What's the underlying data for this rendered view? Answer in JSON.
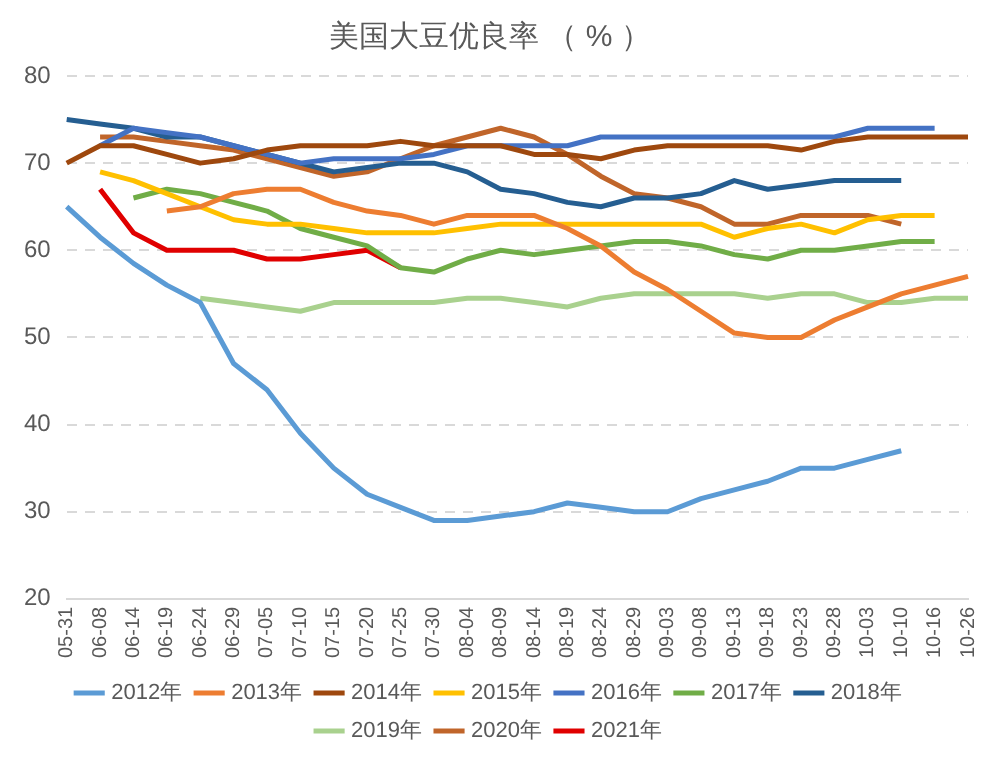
{
  "chart_data": {
    "type": "line",
    "title": "美国大豆优良率 （ % ）",
    "categories": [
      "05-31",
      "06-08",
      "06-14",
      "06-19",
      "06-24",
      "06-29",
      "07-05",
      "07-10",
      "07-15",
      "07-20",
      "07-25",
      "07-30",
      "08-04",
      "08-09",
      "08-14",
      "08-19",
      "08-24",
      "08-29",
      "09-03",
      "09-08",
      "09-13",
      "09-18",
      "09-23",
      "09-28",
      "10-03",
      "10-10",
      "10-16",
      "10-26"
    ],
    "series": [
      {
        "name": "2012年",
        "color": "#5b9bd5",
        "values": [
          65,
          61.5,
          58.5,
          56,
          54,
          47,
          44,
          39,
          35,
          32,
          30.5,
          29,
          29,
          29.5,
          30,
          31,
          30.5,
          30,
          30,
          31.5,
          32.5,
          33.5,
          35,
          35,
          36,
          37,
          null,
          null
        ]
      },
      {
        "name": "2013年",
        "color": "#ed7d31",
        "values": [
          null,
          null,
          null,
          64.5,
          65,
          66.5,
          67,
          67,
          65.5,
          64.5,
          64,
          63,
          64,
          64,
          64,
          62.5,
          60.5,
          57.5,
          55.5,
          53,
          50.5,
          50,
          50,
          52,
          53.5,
          55,
          56,
          57
        ]
      },
      {
        "name": "2014年",
        "color": "#9e480e",
        "values": [
          70,
          72,
          72,
          71,
          70,
          70.5,
          71.5,
          72,
          72,
          72,
          72.5,
          72,
          72,
          72,
          71,
          71,
          70.5,
          71.5,
          72,
          72,
          72,
          72,
          71.5,
          72.5,
          73,
          73,
          73,
          73
        ]
      },
      {
        "name": "2015年",
        "color": "#ffc000",
        "values": [
          null,
          69,
          68,
          66.5,
          65,
          63.5,
          63,
          63,
          62.5,
          62,
          62,
          62,
          62.5,
          63,
          63,
          63,
          63,
          63,
          63,
          63,
          61.5,
          62.5,
          63,
          62,
          63.5,
          64,
          64,
          null
        ]
      },
      {
        "name": "2016年",
        "color": "#4472c4",
        "values": [
          null,
          72,
          74,
          73.5,
          73,
          72,
          71,
          70,
          70.5,
          70.5,
          70.5,
          71,
          72,
          72,
          72,
          72,
          73,
          73,
          73,
          73,
          73,
          73,
          73,
          73,
          74,
          74,
          74,
          null
        ]
      },
      {
        "name": "2017年",
        "color": "#70ad47",
        "values": [
          null,
          null,
          66,
          67,
          66.5,
          65.5,
          64.5,
          62.5,
          61.5,
          60.5,
          58,
          57.5,
          59,
          60,
          59.5,
          60,
          60.5,
          61,
          61,
          60.5,
          59.5,
          59,
          60,
          60,
          60.5,
          61,
          61,
          null
        ]
      },
      {
        "name": "2018年",
        "color": "#255e91",
        "values": [
          75,
          74.5,
          74,
          73,
          73,
          72,
          71,
          70,
          69,
          69.5,
          70,
          70,
          69,
          67,
          66.5,
          65.5,
          65,
          66,
          66,
          66.5,
          68,
          67,
          67.5,
          68,
          68,
          68,
          null,
          null
        ]
      },
      {
        "name": "2019年",
        "color": "#a9d18e",
        "values": [
          null,
          null,
          null,
          null,
          54.5,
          54,
          53.5,
          53,
          54,
          54,
          54,
          54,
          54.5,
          54.5,
          54,
          53.5,
          54.5,
          55,
          55,
          55,
          55,
          54.5,
          55,
          55,
          54,
          54,
          54.5,
          54.5
        ]
      },
      {
        "name": "2020年",
        "color": "#c0652a",
        "values": [
          null,
          73,
          73,
          72.5,
          72,
          71.5,
          70.5,
          69.5,
          68.5,
          69,
          70.5,
          72,
          73,
          74,
          73,
          71,
          68.5,
          66.5,
          66,
          65,
          63,
          63,
          64,
          64,
          64,
          63,
          null,
          null
        ]
      },
      {
        "name": "2021年",
        "color": "#e00000",
        "values": [
          null,
          67,
          62,
          60,
          60,
          60,
          59,
          59,
          59.5,
          60,
          58,
          null,
          null,
          null,
          null,
          null,
          null,
          null,
          null,
          null,
          null,
          null,
          null,
          null,
          null,
          null,
          null,
          null
        ]
      }
    ],
    "ylim": [
      20,
      80
    ],
    "yticks": [
      20,
      30,
      40,
      50,
      60,
      70,
      80
    ],
    "grid": "y",
    "legend": "bottom"
  }
}
